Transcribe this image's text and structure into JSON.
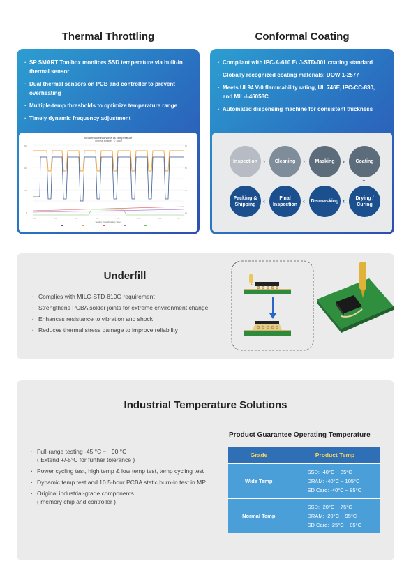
{
  "thermal": {
    "title": "Thermal Throttling",
    "bullets": [
      "SP SMART Toolbox monitors SSD temperature via built-in thermal sensor",
      "Dual thermal sensors on PCB and controller to prevent overheating",
      "Multiple-temp thresholds to optimize temperature range",
      "Timely dynamic frequency adjustment"
    ],
    "chart_title": "Sequential Read/Write vs Temperature",
    "chart_subtitle": "Thermal Enable _ 7 sdxip",
    "chart_xlabel": "Testing Time(Duration Time)"
  },
  "coating": {
    "title": "Conformal Coating",
    "bullets": [
      "Compliant with IPC-A-610 E/ J-STD-001 coating standard",
      "Globally recognized coating materials: DOW 1-2577",
      "Meets UL94 V-0 flammability rating, UL 746E, IPC-CC-830, and MIL-I-46058C",
      "Automated dispensing machine for consistent thickness"
    ],
    "steps_top": [
      "Inspection",
      "Cleaning",
      "Masking",
      "Coating"
    ],
    "steps_bottom": [
      "Packing & Shipping",
      "Final Inspection",
      "De-masking",
      "Drying / Curing"
    ]
  },
  "underfill": {
    "title": "Underfill",
    "bullets": [
      "Complies with MILC-STD-810G requirement",
      "Strengthens PCBA solder joints for extreme environment change",
      "Enhances resistance to vibration and shock",
      "Reduces thermal stress damage to improve reliability"
    ]
  },
  "industrial": {
    "title": "Industrial Temperature Solutions",
    "bullets": [
      "Full-range testing -45 °C ~ +90 °C\n( Extend +/-5°C  for further tolerance )",
      "Power cycling test, high temp & low temp test, temp cycling test",
      "Dynamic temp test and 10.5-hour PCBA static burn-in test in MP",
      "Original industrial-grade components\n( memory chip and controller )"
    ],
    "table_title": "Product Guarantee Operating Temperature",
    "table_headers": [
      "Grade",
      "Product Temp"
    ],
    "rows": [
      {
        "grade": "Wide Temp",
        "values": [
          "SSD: -40°C ~ 85°C",
          "DRAM: -40°C ~ 105°C",
          "SD Card: -40°C ~ 85°C"
        ]
      },
      {
        "grade": "Normal Temp",
        "values": [
          "SSD: -20°C ~ 75°C",
          "DRAM: -20°C ~ 95°C",
          "SD Card: -25°C ~ 85°C"
        ]
      }
    ]
  },
  "colors": {
    "card_blue": "#2a6fc0",
    "table_header": "#2f6fb5",
    "table_body": "#4b9fd8",
    "header_text": "#f7d35a"
  }
}
